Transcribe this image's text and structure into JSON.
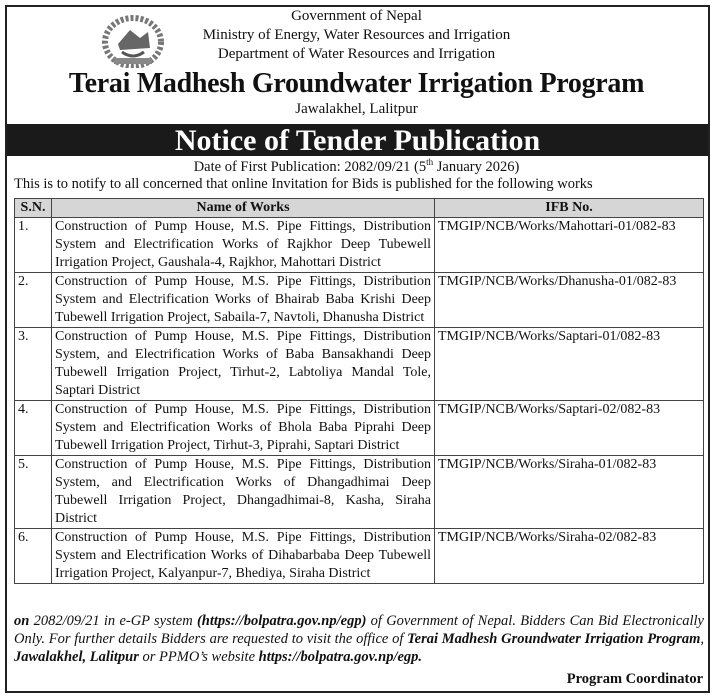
{
  "header": {
    "gov": "Government of Nepal",
    "ministry": "Ministry of Energy, Water Resources and Irrigation",
    "department": "Department of Water Resources and Irrigation",
    "program": "Terai Madhesh Groundwater Irrigation Program",
    "location": "Jawalakhel, Lalitpur",
    "emblem": "nepal-emblem"
  },
  "notice": {
    "title": "Notice of Tender Publication",
    "date_prefix": "Date of First Publication: 2082/09/21 (5",
    "date_sup": "th",
    "date_suffix": " January 2026)",
    "intro": "This is to notify to all concerned that online Invitation for Bids is published for the following works"
  },
  "table": {
    "headers": [
      "S.N.",
      "Name of Works",
      "IFB No."
    ],
    "rows": [
      {
        "sn": "1.",
        "name": "Construction of Pump House, M.S. Pipe Fittings, Distribution System and Electrification Works of Rajkhor Deep Tubewell Irrigation Project, Gaushala-4, Rajkhor, Mahottari District",
        "ifb": "TMGIP/NCB/Works/Mahottari-01/082-83"
      },
      {
        "sn": "2.",
        "name": "Construction of Pump House, M.S. Pipe Fittings, Distribution System and Electrification Works of Bhairab Baba Krishi Deep Tubewell Irrigation Project, Sabaila-7, Navtoli, Dhanusha District",
        "ifb": "TMGIP/NCB/Works/Dhanusha-01/082-83"
      },
      {
        "sn": "3.",
        "name": "Construction of Pump House, M.S. Pipe Fittings, Distribution System, and Electrification Works of Baba Bansakhandi Deep Tubewell Irrigation Project, Tirhut-2, Labtoliya Mandal Tole, Saptari District",
        "ifb": "TMGIP/NCB/Works/Saptari-01/082-83"
      },
      {
        "sn": "4.",
        "name": "Construction of Pump House, M.S. Pipe Fittings, Distribution System and Electrification Works of Bhola Baba Piprahi Deep Tubewell Irrigation Project, Tirhut-3, Piprahi, Saptari District",
        "ifb": "TMGIP/NCB/Works/Saptari-02/082-83"
      },
      {
        "sn": "5.",
        "name": "Construction of Pump House, M.S. Pipe Fittings, Distribution System, and Electrification Works of Dhangadhimai Deep Tubewell Irrigation Project, Dhangadhimai-8, Kasha, Siraha District",
        "ifb": "TMGIP/NCB/Works/Siraha-01/082-83"
      },
      {
        "sn": "6.",
        "name": "Construction of Pump House, M.S. Pipe Fittings, Distribution System and Electrification Works of Dihabarbaba Deep Tubewell Irrigation Project, Kalyanpur-7, Bhediya, Siraha District",
        "ifb": "TMGIP/NCB/Works/Siraha-02/082-83"
      }
    ]
  },
  "footer": {
    "p1": "on",
    "p2": " 2082/09/21 in e-GP system ",
    "p3": "(https://bolpatra.gov.np/egp)",
    "p4": " of Government of Nepal. Bidders Can Bid Electronically Only. For further details Bidders are requested to visit the office of ",
    "p5": "Terai Madhesh Groundwater Irrigation Program",
    "p6": ", ",
    "p7": "Jawalakhel, Lalitpur",
    "p8": " or PPMO’s website ",
    "p9": "https://bolpatra.gov.np/egp.",
    "signature": "Program Coordinator"
  }
}
